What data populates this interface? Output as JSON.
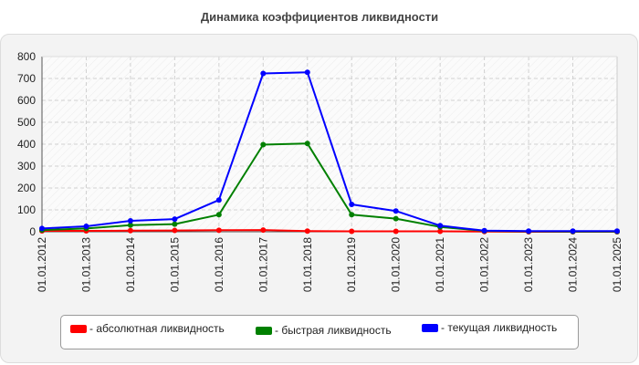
{
  "chart_data": {
    "type": "line",
    "title": "Динамика коэффициентов ликвидности",
    "categories": [
      "01.01.2012",
      "01.01.2013",
      "01.01.2014",
      "01.01.2015",
      "01.01.2016",
      "01.01.2017",
      "01.01.2018",
      "01.01.2019",
      "01.01.2020",
      "01.01.2021",
      "01.01.2022",
      "01.01.2023",
      "01.01.2024",
      "01.01.2025"
    ],
    "ylim": [
      0,
      800
    ],
    "yticks": [
      "0",
      "100",
      "200",
      "300",
      "400",
      "500",
      "600",
      "700",
      "800"
    ],
    "grid": true,
    "legend_position": "bottom",
    "series": [
      {
        "name": "- абсолютная ликвидность",
        "color": "#ff0000",
        "values": [
          4,
          4,
          5,
          6,
          7,
          8,
          3,
          2,
          2,
          2,
          1,
          0,
          0,
          0
        ]
      },
      {
        "name": "- быстрая ликвидность",
        "color": "#008000",
        "values": [
          8,
          15,
          30,
          35,
          78,
          398,
          403,
          78,
          60,
          22,
          4,
          2,
          1,
          1
        ]
      },
      {
        "name": "- текущая ликвидность",
        "color": "#0000ff",
        "values": [
          15,
          25,
          50,
          58,
          145,
          723,
          728,
          125,
          95,
          28,
          5,
          3,
          3,
          3
        ]
      }
    ]
  }
}
